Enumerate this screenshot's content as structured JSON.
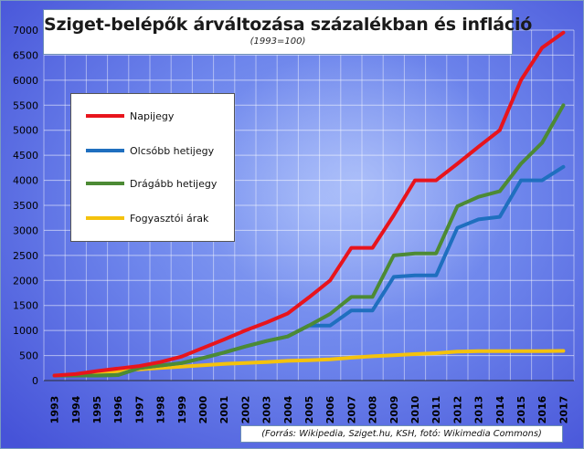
{
  "title": "Sziget-belépők árváltozása százalékban és infláció",
  "subtitle": "(1993=100)",
  "source": "(Forrás:  Wikipedia, Sziget.hu,  KSH, fotó:  Wikimedia Commons)",
  "colors": {
    "napijegy": "#e8141c",
    "olcsobb": "#1f6fbf",
    "dragabb": "#4c8a34",
    "fogyasztoi": "#f4c20d"
  },
  "chart_data": {
    "type": "line",
    "x": [
      "1993",
      "1994",
      "1995",
      "1996",
      "1997",
      "1998",
      "1999",
      "2000",
      "2001",
      "2002",
      "2003",
      "2004",
      "2005",
      "2006",
      "2007",
      "2008",
      "2009",
      "2010",
      "2011",
      "2012",
      "2013",
      "2014",
      "2015",
      "2016",
      "2017"
    ],
    "ylim": [
      0,
      7000
    ],
    "yticks": [
      0,
      500,
      1000,
      1500,
      2000,
      2500,
      3000,
      3500,
      4000,
      4500,
      5000,
      5500,
      6000,
      6500,
      7000
    ],
    "grid": true,
    "legend_position": "top-left",
    "series": [
      {
        "name": "Napijegy",
        "color": "#e8141c",
        "values": [
          100,
          130,
          190,
          240,
          290,
          370,
          480,
          650,
          820,
          1000,
          1160,
          1340,
          1660,
          2000,
          2650,
          2650,
          3300,
          4000,
          4000,
          4330,
          4670,
          5000,
          6000,
          6650,
          6950
        ]
      },
      {
        "name": "Olcsóbb hetijegy",
        "color": "#1f6fbf",
        "values": [
          100,
          100,
          100,
          110,
          250,
          300,
          350,
          450,
          560,
          680,
          790,
          880,
          1100,
          1100,
          1400,
          1400,
          2070,
          2100,
          2100,
          3050,
          3220,
          3270,
          4000,
          4000,
          4270
        ]
      },
      {
        "name": "Drágább hetijegy",
        "color": "#4c8a34",
        "values": [
          100,
          100,
          100,
          110,
          250,
          300,
          350,
          450,
          560,
          680,
          790,
          880,
          1100,
          1330,
          1670,
          1670,
          2500,
          2540,
          2540,
          3480,
          3670,
          3780,
          4330,
          4750,
          5500
        ]
      },
      {
        "name": "Fogyasztói árak",
        "color": "#f4c20d",
        "values": [
          100,
          119,
          153,
          189,
          223,
          254,
          279,
          306,
          334,
          352,
          368,
          393,
          407,
          423,
          457,
          485,
          505,
          529,
          547,
          578,
          588,
          589,
          589,
          589,
          592
        ]
      }
    ]
  }
}
